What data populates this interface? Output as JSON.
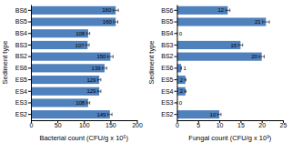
{
  "chart_data": [
    {
      "type": "bar",
      "orientation": "horizontal",
      "categories": [
        "BS6",
        "BS5",
        "BS4",
        "BS3",
        "BS2",
        "ES6",
        "ES5",
        "ES4",
        "ES3",
        "ES2"
      ],
      "values": [
        160,
        160,
        108,
        107,
        150,
        139,
        129,
        129,
        108,
        149
      ],
      "errors": [
        5,
        4,
        3,
        3,
        5,
        4,
        3,
        3,
        3,
        4
      ],
      "color": "#4F81BD",
      "x_label": "Bacterial count (CFU/g x 10⁵)",
      "y_label": "Sediment type",
      "xlim": [
        0,
        200
      ],
      "xticks": [
        0,
        50,
        100,
        150,
        200
      ],
      "grid": false,
      "data_labels": true
    },
    {
      "type": "bar",
      "orientation": "horizontal",
      "categories": [
        "BS6",
        "BS5",
        "BS4",
        "BS3",
        "BS2",
        "ES6",
        "ES5",
        "ES4",
        "ES3",
        "ES2"
      ],
      "values": [
        12,
        21,
        0,
        15,
        20,
        1,
        2,
        2,
        0,
        10
      ],
      "errors": [
        0.5,
        0.8,
        0.05,
        0.5,
        0.6,
        0.05,
        0.15,
        0.15,
        0.05,
        0.4
      ],
      "color": "#4F81BD",
      "x_label": "Fungal count (CFU/g x 10³)",
      "y_label": "Sediment type",
      "xlim": [
        0,
        25
      ],
      "xticks": [
        0,
        5,
        10,
        15,
        20,
        25
      ],
      "grid": false,
      "data_labels": true
    }
  ]
}
